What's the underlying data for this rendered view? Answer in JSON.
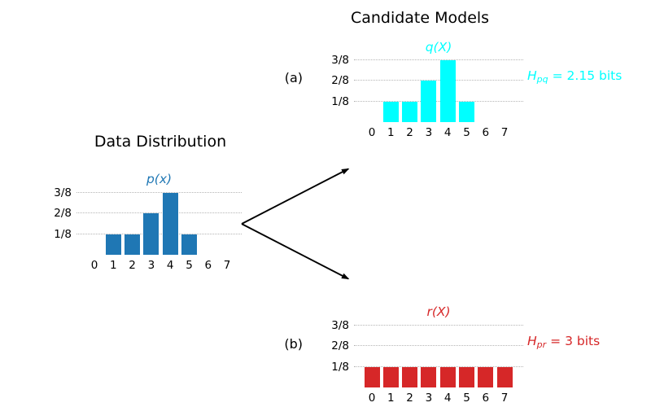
{
  "figure": {
    "left_section_title": "Data Distribution",
    "right_section_title": "Candidate Models",
    "panel_a_label": "(a)",
    "panel_b_label": "(b)",
    "background_color": "#ffffff",
    "grid_style": "horizontal-dotted-gray"
  },
  "chart_data": [
    {
      "id": "p",
      "type": "bar",
      "title": "p(x)",
      "section_title": "Data Distribution",
      "categories": [
        "0",
        "1",
        "2",
        "3",
        "4",
        "5",
        "6",
        "7"
      ],
      "values": [
        0,
        0.125,
        0.125,
        0.25,
        0.375,
        0.125,
        0,
        0
      ],
      "values_eighths": [
        0,
        1,
        1,
        2,
        3,
        1,
        0,
        0
      ],
      "ytick_labels": [
        "1/8",
        "2/8",
        "3/8"
      ],
      "ylim": [
        0,
        0.4375
      ],
      "xlabel": "",
      "ylabel": "",
      "grid": true,
      "bar_color": "#1f77b4",
      "title_color": "#1f77b4"
    },
    {
      "id": "q",
      "type": "bar",
      "title": "q(X)",
      "section_title": "Candidate Models",
      "panel_label": "(a)",
      "categories": [
        "0",
        "1",
        "2",
        "3",
        "4",
        "5",
        "6",
        "7"
      ],
      "values": [
        0,
        0.125,
        0.125,
        0.25,
        0.375,
        0.125,
        0,
        0
      ],
      "values_eighths": [
        0,
        1,
        1,
        2,
        3,
        1,
        0,
        0
      ],
      "ytick_labels": [
        "1/8",
        "2/8",
        "3/8"
      ],
      "ylim": [
        0,
        0.4375
      ],
      "xlabel": "",
      "ylabel": "",
      "grid": true,
      "bar_color": "#00ffff",
      "title_color": "#00ffff",
      "annotation": {
        "symbol": "H",
        "subscript": "pq",
        "value": "= 2.15 bits",
        "color": "#00ffff"
      }
    },
    {
      "id": "r",
      "type": "bar",
      "title": "r(X)",
      "section_title": "Candidate Models",
      "panel_label": "(b)",
      "categories": [
        "0",
        "1",
        "2",
        "3",
        "4",
        "5",
        "6",
        "7"
      ],
      "values": [
        0.125,
        0.125,
        0.125,
        0.125,
        0.125,
        0.125,
        0.125,
        0.125
      ],
      "values_eighths": [
        1,
        1,
        1,
        1,
        1,
        1,
        1,
        1
      ],
      "ytick_labels": [
        "1/8",
        "2/8",
        "3/8"
      ],
      "ylim": [
        0,
        0.4375
      ],
      "xlabel": "",
      "ylabel": "",
      "grid": true,
      "bar_color": "#d62728",
      "title_color": "#d62728",
      "annotation": {
        "symbol": "H",
        "subscript": "pr",
        "value": "= 3 bits",
        "color": "#d62728"
      }
    }
  ]
}
